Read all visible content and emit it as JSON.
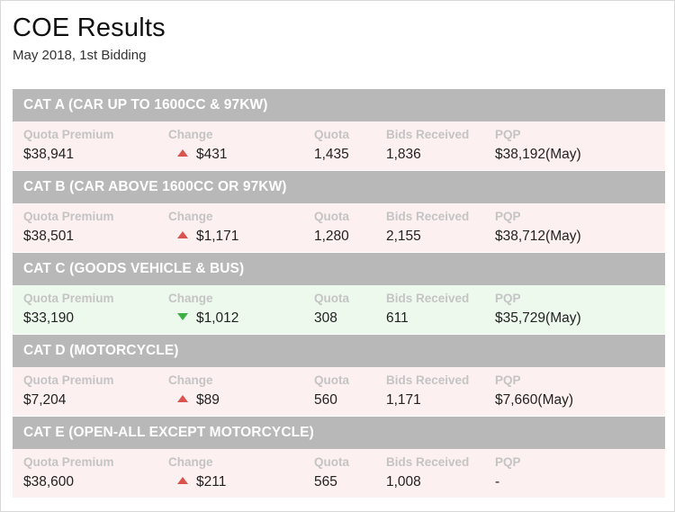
{
  "page": {
    "title": "COE Results",
    "subtitle": "May 2018, 1st Bidding"
  },
  "labels": {
    "quota_premium": "Quota Premium",
    "change": "Change",
    "quota": "Quota",
    "bids_received": "Bids Received",
    "pqp": "PQP"
  },
  "colors": {
    "header_bg": "#b8b8b8",
    "up_row_bg": "#fdf0f0",
    "down_row_bg": "#eef9ee",
    "up_arrow": "#d9534f",
    "down_arrow": "#3cb043"
  },
  "categories": [
    {
      "name": "CAT A (CAR UP TO 1600CC & 97KW)",
      "quota_premium": "$38,941",
      "direction": "up",
      "change": "$431",
      "quota": "1,435",
      "bids_received": "1,836",
      "pqp": "$38,192(May)"
    },
    {
      "name": "CAT B (CAR ABOVE 1600CC OR 97KW)",
      "quota_premium": "$38,501",
      "direction": "up",
      "change": "$1,171",
      "quota": "1,280",
      "bids_received": "2,155",
      "pqp": "$38,712(May)"
    },
    {
      "name": "CAT C (GOODS VEHICLE & BUS)",
      "quota_premium": "$33,190",
      "direction": "down",
      "change": "$1,012",
      "quota": "308",
      "bids_received": "611",
      "pqp": "$35,729(May)"
    },
    {
      "name": "CAT D (MOTORCYCLE)",
      "quota_premium": "$7,204",
      "direction": "up",
      "change": "$89",
      "quota": "560",
      "bids_received": "1,171",
      "pqp": "$7,660(May)"
    },
    {
      "name": "CAT E (OPEN-ALL EXCEPT MOTORCYCLE)",
      "quota_premium": "$38,600",
      "direction": "up",
      "change": "$211",
      "quota": "565",
      "bids_received": "1,008",
      "pqp": "-"
    }
  ]
}
